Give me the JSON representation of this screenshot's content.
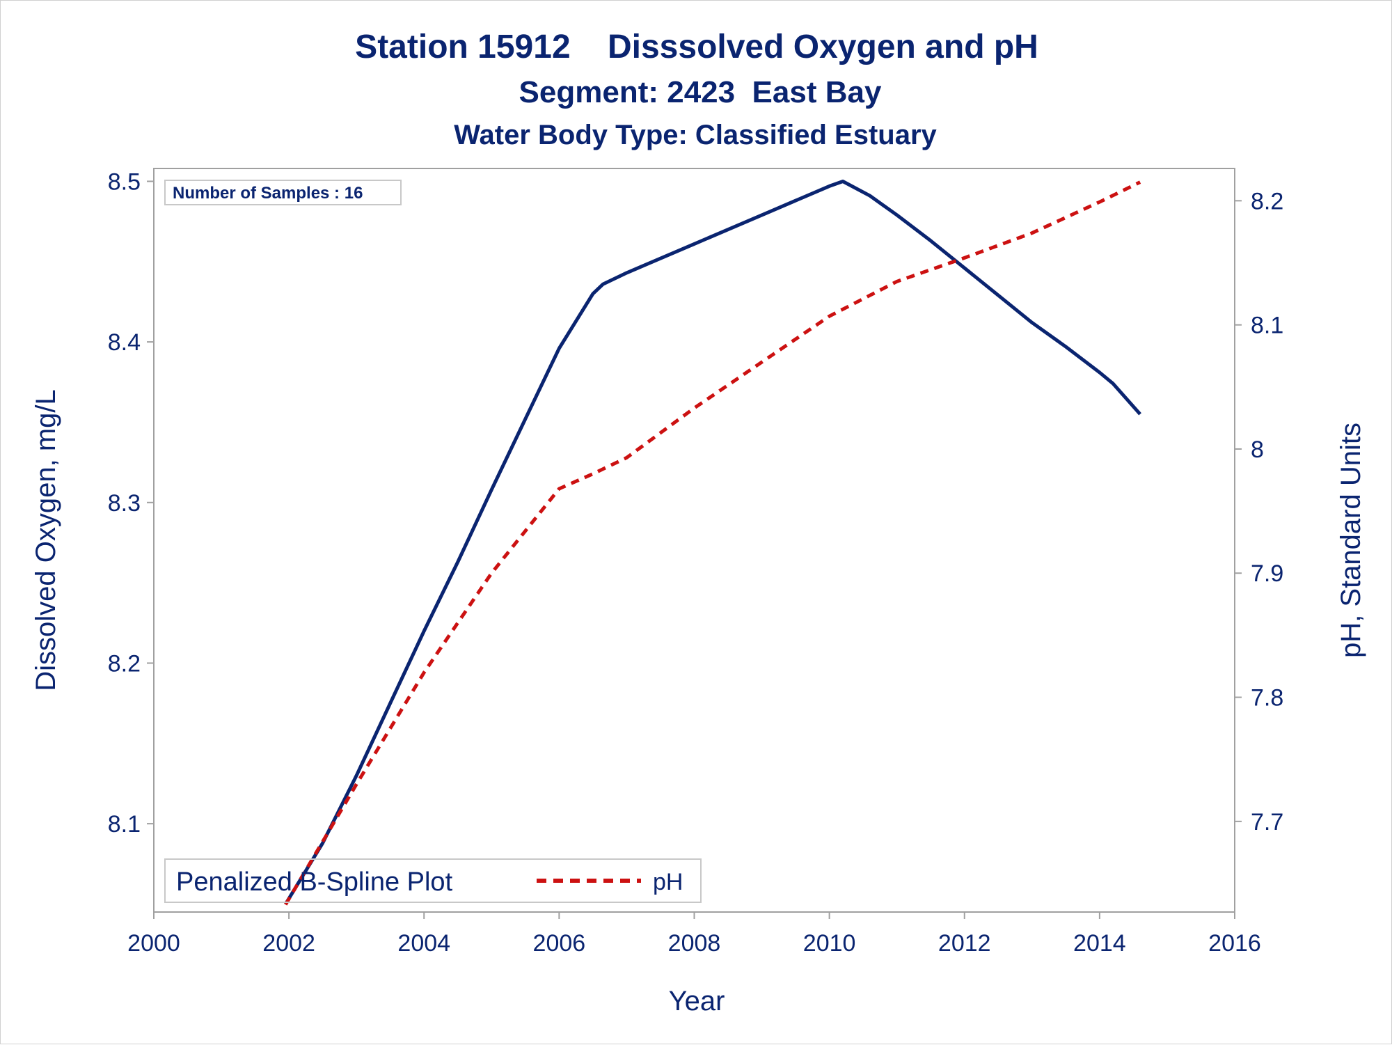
{
  "chart_data": {
    "type": "line",
    "title": "Station 15912    Disssolved Oxygen and pH",
    "subtitle": "Segment: 2423  East Bay",
    "subtitle2": "Water Body Type: Classified Estuary",
    "xlabel": "Year",
    "ylabel": "Dissolved Oxygen, mg/L",
    "y2label": "pH, Standard Units",
    "xlim": [
      2000,
      2016
    ],
    "ylim": [
      8.045,
      8.508
    ],
    "y2lim": [
      7.627,
      8.226
    ],
    "xticks": [
      "2000",
      "2002",
      "2004",
      "2006",
      "2008",
      "2010",
      "2012",
      "2014",
      "2016"
    ],
    "yticks": [
      "8.1",
      "8.2",
      "8.3",
      "8.4",
      "8.5"
    ],
    "y2ticks": [
      "7.7",
      "7.8",
      "7.9",
      "8",
      "8.1",
      "8.2"
    ],
    "inset_text": "Number of Samples : 16",
    "legend_title": "Penalized B-Spline Plot",
    "legend_placement": "bottom-left",
    "grid": false,
    "series": [
      {
        "axis": "left",
        "color": "#0a2470",
        "style": "solid",
        "x": [
          2001.95,
          2002.5,
          2003,
          2003.5,
          2004,
          2004.5,
          2005,
          2005.5,
          2006,
          2006.5,
          2006.65,
          2007,
          2008,
          2009,
          2010,
          2010.2,
          2010.6,
          2011,
          2011.5,
          2012,
          2012.5,
          2013,
          2013.5,
          2014,
          2014.2,
          2014.6
        ],
        "y": [
          8.05,
          8.088,
          8.13,
          8.175,
          8.22,
          8.263,
          8.308,
          8.352,
          8.396,
          8.43,
          8.436,
          8.443,
          8.461,
          8.479,
          8.497,
          8.5,
          8.491,
          8.479,
          8.463,
          8.446,
          8.429,
          8.412,
          8.397,
          8.381,
          8.374,
          8.355
        ]
      },
      {
        "name": "pH",
        "axis": "right",
        "color": "#cc1111",
        "style": "dashed",
        "x": [
          2001.95,
          2003,
          2004,
          2005,
          2006,
          2006.5,
          2007,
          2008,
          2009,
          2010,
          2011,
          2012,
          2013,
          2014,
          2014.6
        ],
        "y": [
          7.633,
          7.73,
          7.82,
          7.9,
          7.968,
          7.98,
          7.993,
          8.033,
          8.07,
          8.107,
          8.135,
          8.154,
          8.174,
          8.199,
          8.215
        ]
      }
    ]
  }
}
